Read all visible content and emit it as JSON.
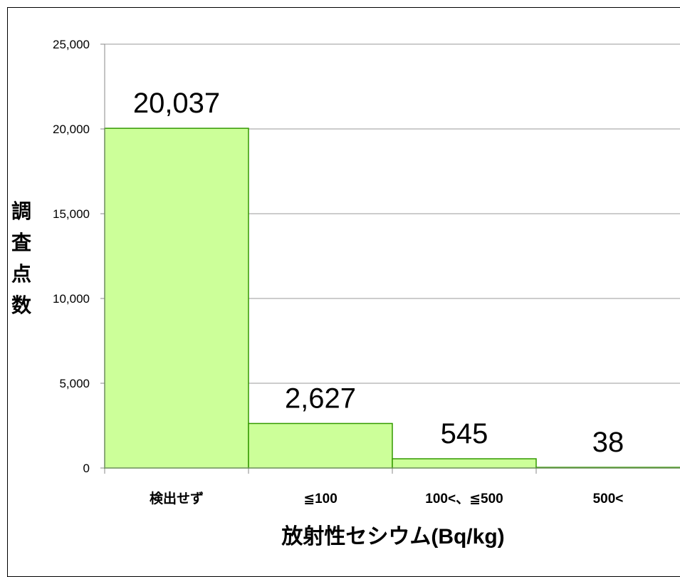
{
  "chart_data": {
    "type": "bar",
    "categories": [
      "検出せず",
      "≦100",
      "100<、≦500",
      "500<"
    ],
    "values": [
      20037,
      2627,
      545,
      38
    ],
    "data_labels": [
      "20,037",
      "2,627",
      "545",
      "38"
    ],
    "title": "",
    "xlabel": "放射性セシウム(Bq/kg)",
    "ylabel": "調査点数",
    "ylim": [
      0,
      25000
    ],
    "yticks": [
      0,
      5000,
      10000,
      15000,
      20000,
      25000
    ],
    "ytick_labels": [
      "0",
      "5,000",
      "10,000",
      "15,000",
      "20,000",
      "25,000"
    ],
    "grid": true,
    "legend": "none",
    "colors": {
      "bar_fill": "#ccff99",
      "bar_stroke": "#339900",
      "grid": "#999999",
      "axis": "#888888"
    }
  }
}
